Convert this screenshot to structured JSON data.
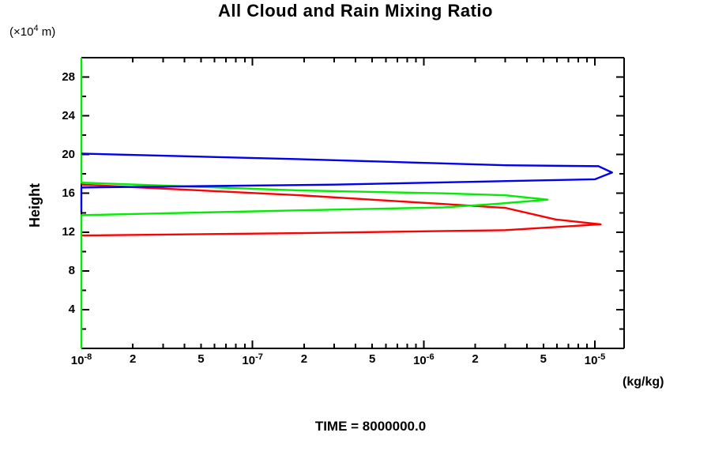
{
  "page": {
    "background": "#ffffff"
  },
  "y_axis": {
    "axis_label": "Height",
    "unit_label": {
      "text": "(×10",
      "sup": "4",
      "tail": " m)"
    },
    "min": 0,
    "max": 30,
    "major_ticks": [
      {
        "value": 4,
        "label": "4"
      },
      {
        "value": 8,
        "label": "8"
      },
      {
        "value": 12,
        "label": "12"
      },
      {
        "value": 16,
        "label": "16"
      },
      {
        "value": 20,
        "label": "20"
      },
      {
        "value": 24,
        "label": "24"
      },
      {
        "value": 28,
        "label": "28"
      }
    ],
    "minor_tick_values": [
      2,
      6,
      10,
      14,
      18,
      22,
      26,
      30
    ]
  },
  "x_axis": {
    "scale": "log",
    "unit_label": "(kg/kg)",
    "min_value": 1e-08,
    "max_value": 1.48e-05,
    "labeled_ticks": [
      {
        "value": 1e-08,
        "base": "10",
        "sup": "-8"
      },
      {
        "value": 2e-08,
        "base": "2"
      },
      {
        "value": 5e-08,
        "base": "5"
      },
      {
        "value": 1e-07,
        "base": "10",
        "sup": "-7"
      },
      {
        "value": 2e-07,
        "base": "2"
      },
      {
        "value": 5e-07,
        "base": "5"
      },
      {
        "value": 1e-06,
        "base": "10",
        "sup": "-6"
      },
      {
        "value": 2e-06,
        "base": "2"
      },
      {
        "value": 5e-06,
        "base": "5"
      },
      {
        "value": 1e-05,
        "base": "10",
        "sup": "-5"
      }
    ],
    "major_tick_values": [
      1e-08,
      1e-07,
      1e-06,
      1e-05
    ],
    "minor_tick_values": [
      2e-08,
      3e-08,
      4e-08,
      5e-08,
      6e-08,
      7e-08,
      8e-08,
      9e-08,
      2e-07,
      3e-07,
      4e-07,
      5e-07,
      6e-07,
      7e-07,
      8e-07,
      9e-07,
      2e-06,
      3e-06,
      4e-06,
      5e-06,
      6e-06,
      7e-06,
      8e-06,
      9e-06
    ]
  },
  "chart_data": {
    "type": "line",
    "title": "All Cloud and Rain Mixing Ratio",
    "xlabel": "(kg/kg)",
    "ylabel": "Height",
    "ylabel_unit": "(×10^4 m)",
    "x_scale": "log",
    "xlim": [
      1e-08,
      1.48e-05
    ],
    "ylim": [
      0,
      30
    ],
    "grid": false,
    "legend": "none",
    "time_label": "TIME = 8000000.0",
    "series": [
      {
        "name": "red-curve",
        "color": "#ff0000",
        "points": [
          [
            1e-08,
            16.9
          ],
          [
            1.9e-07,
            15.8
          ],
          [
            1.3e-06,
            14.9
          ],
          [
            3e-06,
            14.5
          ],
          [
            5.9e-06,
            13.3
          ],
          [
            1.08e-05,
            12.8
          ],
          [
            7e-06,
            12.6
          ],
          [
            3e-06,
            12.2
          ],
          [
            1.9e-07,
            11.9
          ],
          [
            1e-08,
            11.65
          ]
        ]
      },
      {
        "name": "green-curve",
        "color": "#00ee00",
        "points": [
          [
            1e-08,
            30.0
          ],
          [
            1e-08,
            17.1
          ],
          [
            1.9e-07,
            16.3
          ],
          [
            1.3e-06,
            16.0
          ],
          [
            3e-06,
            15.8
          ],
          [
            5.3e-06,
            15.35
          ],
          [
            2.6e-06,
            14.9
          ],
          [
            1.3e-06,
            14.55
          ],
          [
            1.9e-07,
            14.25
          ],
          [
            1e-08,
            13.75
          ],
          [
            1e-08,
            0.0
          ]
        ]
      },
      {
        "name": "blue-curve",
        "color": "#0000ee",
        "points": [
          [
            1e-08,
            20.1
          ],
          [
            2.1e-07,
            19.5
          ],
          [
            3e-06,
            18.9
          ],
          [
            1.05e-05,
            18.8
          ],
          [
            1.26e-05,
            18.15
          ],
          [
            1e-05,
            17.45
          ],
          [
            2e-06,
            17.2
          ],
          [
            3e-07,
            16.9
          ],
          [
            1e-08,
            16.6
          ],
          [
            1e-08,
            14.1
          ]
        ]
      }
    ]
  }
}
